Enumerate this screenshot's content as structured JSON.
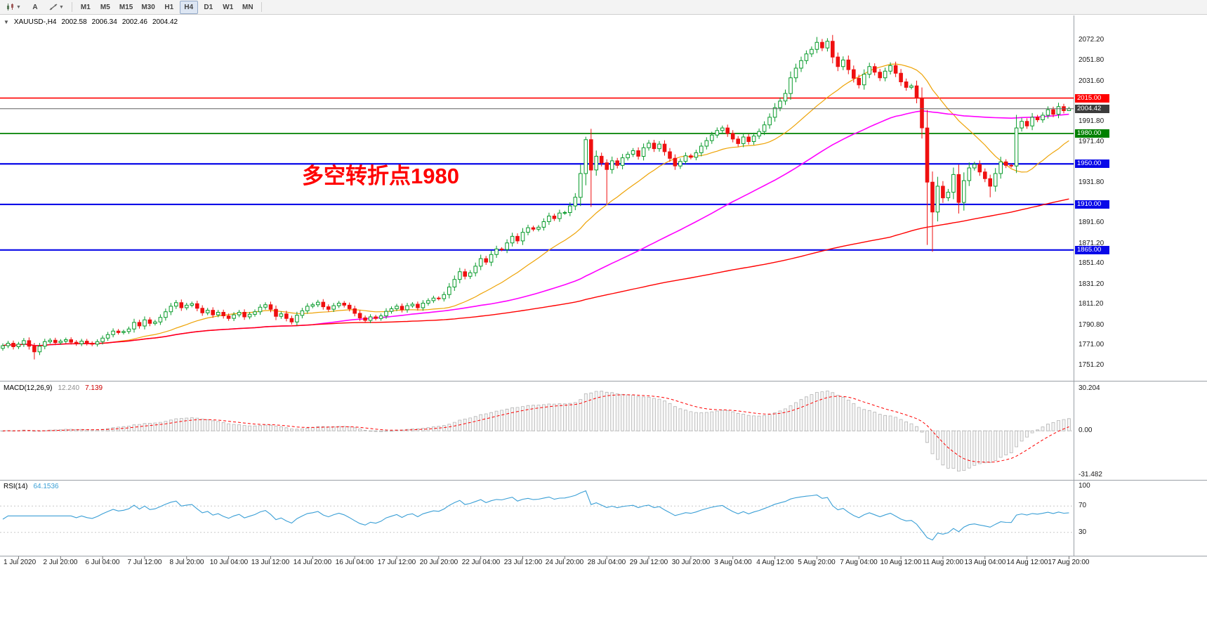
{
  "toolbar": {
    "cursor_button_label": "A",
    "timeframes": [
      "M1",
      "M5",
      "M15",
      "M30",
      "H1",
      "H4",
      "D1",
      "W1",
      "MN"
    ],
    "active_timeframe": "H4"
  },
  "symbol_line": {
    "collapse_icon": "▼",
    "symbol": "XAUUSD-,H4",
    "open": "2002.58",
    "high": "2006.34",
    "low": "2002.46",
    "close": "2004.42"
  },
  "annotation": {
    "text": "多空转折点1980",
    "color": "#FF0000"
  },
  "chart_data": {
    "type": "candlestick",
    "symbol": "XAUUSD-",
    "timeframe": "H4",
    "up_color": "#089b2b",
    "down_color": "#ef1010",
    "price_axis_labels": [
      "2072.20",
      "2051.80",
      "2031.60",
      "1991.80",
      "1971.40",
      "1931.80",
      "1891.60",
      "1871.20",
      "1851.40",
      "1831.20",
      "1811.20",
      "1790.80",
      "1771.00",
      "1751.20"
    ],
    "time_axis_labels": [
      "1 Jul 2020",
      "2 Jul 20:00",
      "6 Jul 04:00",
      "7 Jul 12:00",
      "8 Jul 20:00",
      "10 Jul 04:00",
      "13 Jul 12:00",
      "14 Jul 20:00",
      "16 Jul 04:00",
      "17 Jul 12:00",
      "20 Jul 20:00",
      "22 Jul 04:00",
      "23 Jul 12:00",
      "24 Jul 20:00",
      "28 Jul 04:00",
      "29 Jul 12:00",
      "30 Jul 20:00",
      "3 Aug 04:00",
      "4 Aug 12:00",
      "5 Aug 20:00",
      "7 Aug 04:00",
      "10 Aug 12:00",
      "11 Aug 20:00",
      "13 Aug 04:00",
      "14 Aug 12:00",
      "17 Aug 20:00"
    ],
    "levels": [
      {
        "price": 2015.0,
        "label": "2015.00",
        "color": "#ff0000",
        "width": 1.6
      },
      {
        "price": 1980.0,
        "label": "1980.00",
        "color": "#008000",
        "width": 1.8
      },
      {
        "price": 1950.0,
        "label": "1950.00",
        "color": "#0808e8",
        "width": 2.2
      },
      {
        "price": 1910.0,
        "label": "1910.00",
        "color": "#0808e8",
        "width": 2.2
      },
      {
        "price": 1865.0,
        "label": "1865.00",
        "color": "#0808e8",
        "width": 2.2
      }
    ],
    "bid": {
      "price": 2004.42,
      "label": "2004.42",
      "color": "#3c3c3c",
      "line_color": "#606060"
    },
    "moving_averages": [
      {
        "name": "ma-fast",
        "period": 20,
        "color": "#eea306",
        "stroke": 1.2
      },
      {
        "name": "ma-mid",
        "period": 60,
        "color": "#ff00ff",
        "stroke": 1.6
      },
      {
        "name": "ma-slow",
        "period": 170,
        "color": "#ff0000",
        "stroke": 1.4
      }
    ],
    "candles": {
      "first_open": 1768.0,
      "closes": [
        1770.5,
        1773.0,
        1769.5,
        1772.0,
        1775.5,
        1770.0,
        1764.5,
        1770.0,
        1774.5,
        1776.0,
        1773.5,
        1775.0,
        1776.5,
        1774.0,
        1772.5,
        1775.0,
        1773.0,
        1772.0,
        1774.5,
        1778.0,
        1781.5,
        1785.0,
        1783.5,
        1784.5,
        1787.0,
        1793.5,
        1790.0,
        1796.0,
        1792.5,
        1794.0,
        1798.5,
        1804.0,
        1809.5,
        1813.0,
        1808.0,
        1810.5,
        1812.0,
        1807.5,
        1803.0,
        1805.5,
        1801.0,
        1803.5,
        1800.0,
        1797.5,
        1801.0,
        1803.5,
        1799.0,
        1801.5,
        1804.0,
        1808.5,
        1811.0,
        1806.5,
        1799.5,
        1802.0,
        1797.5,
        1794.0,
        1800.5,
        1805.0,
        1809.5,
        1811.0,
        1813.5,
        1809.0,
        1806.5,
        1810.0,
        1812.5,
        1810.5,
        1807.0,
        1802.5,
        1798.0,
        1795.5,
        1799.0,
        1797.5,
        1800.0,
        1804.5,
        1807.0,
        1809.5,
        1806.0,
        1810.0,
        1811.5,
        1808.0,
        1812.5,
        1815.0,
        1817.5,
        1817.0,
        1821.0,
        1828.5,
        1836.0,
        1843.5,
        1839.0,
        1842.5,
        1849.0,
        1856.5,
        1853.0,
        1860.5,
        1866.0,
        1865.5,
        1872.0,
        1878.5,
        1874.0,
        1882.5,
        1887.0,
        1885.5,
        1887.5,
        1893.0,
        1898.5,
        1896.0,
        1901.5,
        1902.0,
        1908.5,
        1917.0,
        1940.5,
        1974.0,
        1944.0,
        1957.5,
        1951.0,
        1944.5,
        1953.0,
        1948.5,
        1956.0,
        1959.5,
        1963.0,
        1957.5,
        1966.0,
        1970.5,
        1965.0,
        1969.5,
        1962.0,
        1955.5,
        1948.0,
        1952.5,
        1958.0,
        1956.5,
        1961.0,
        1967.5,
        1973.0,
        1978.5,
        1983.0,
        1985.5,
        1980.0,
        1974.5,
        1970.0,
        1976.5,
        1972.0,
        1977.5,
        1982.0,
        1988.5,
        1996.0,
        2005.5,
        2012.0,
        2019.5,
        2035.0,
        2044.5,
        2052.0,
        2058.5,
        2063.0,
        2070.0,
        2064.5,
        2071.0,
        2055.5,
        2046.0,
        2052.5,
        2043.0,
        2034.5,
        2028.0,
        2038.5,
        2046.0,
        2040.5,
        2035.0,
        2041.5,
        2047.0,
        2039.5,
        2031.0,
        2025.5,
        2027.0,
        2015.0,
        1985.5,
        1932.0,
        1902.5,
        1928.0,
        1916.5,
        1922.0,
        1939.5,
        1912.0,
        1933.5,
        1946.0,
        1949.5,
        1942.0,
        1935.5,
        1928.0,
        1940.5,
        1952.0,
        1948.5,
        1948.0,
        1985.5,
        1992.0,
        1987.5,
        1996.0,
        1993.5,
        1998.0,
        2003.5,
        1999.0,
        2006.5,
        2002.58,
        2004.42
      ],
      "wick_overrides": {
        "6": {
          "l": 1757.0
        },
        "111": {
          "h": 1976.8
        },
        "112": {
          "l": 1907.5
        },
        "115": {
          "l": 1910.8
        },
        "155": {
          "h": 2075.3
        },
        "157": {
          "h": 2074.0
        },
        "176": {
          "l": 1870.0
        },
        "177": {
          "l": 1863.2
        },
        "182": {
          "l": 1901.0
        },
        "188": {
          "l": 1917.0
        },
        "193": {
          "l": 1941.0
        },
        "203": {
          "h": 2006.34,
          "l": 2002.46
        }
      }
    },
    "macd": {
      "header": "MACD(12,26,9)",
      "value": "12.240",
      "signal": "7.139",
      "fast": 12,
      "slow": 26,
      "signal_period": 9,
      "axis_max": "30.204",
      "axis_zero": "0.00",
      "axis_min": "-31.482",
      "hist_fill": "#f6f6f6",
      "hist_stroke": "#b4b4b4",
      "signal_color": "#ff0000"
    },
    "rsi": {
      "header": "RSI(14)",
      "value": "64.1536",
      "period": 14,
      "axis_labels": [
        "100",
        "70",
        "30"
      ],
      "levels": [
        70,
        30
      ],
      "color": "#3a9fd6"
    }
  }
}
